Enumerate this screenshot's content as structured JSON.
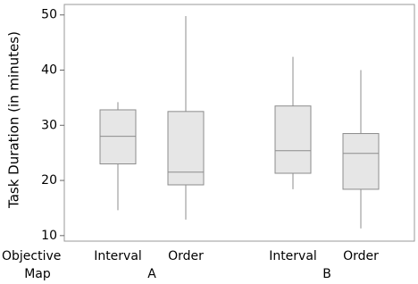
{
  "chart_data": {
    "type": "box",
    "ylabel": "Task Duration (in minutes)",
    "ylim": [
      9,
      51.9
    ],
    "yticks": [
      10,
      20,
      30,
      40,
      50
    ],
    "x_level_names": [
      "Objective",
      "Map"
    ],
    "color": "#e6e6e6",
    "edge_color": "#8c8c8c",
    "groups": [
      {
        "name": "A",
        "boxes": [
          {
            "label": "Interval",
            "whislo": 14.6,
            "q1": 23.0,
            "med": 28.0,
            "q3": 32.8,
            "whishi": 34.2
          },
          {
            "label": "Order",
            "whislo": 12.9,
            "q1": 19.2,
            "med": 21.5,
            "q3": 32.5,
            "whishi": 49.8
          }
        ]
      },
      {
        "name": "B",
        "boxes": [
          {
            "label": "Interval",
            "whislo": 18.4,
            "q1": 21.3,
            "med": 25.4,
            "q3": 33.5,
            "whishi": 42.4
          },
          {
            "label": "Order",
            "whislo": 11.3,
            "q1": 18.4,
            "med": 24.9,
            "q3": 28.5,
            "whishi": 40.0
          }
        ]
      }
    ]
  }
}
